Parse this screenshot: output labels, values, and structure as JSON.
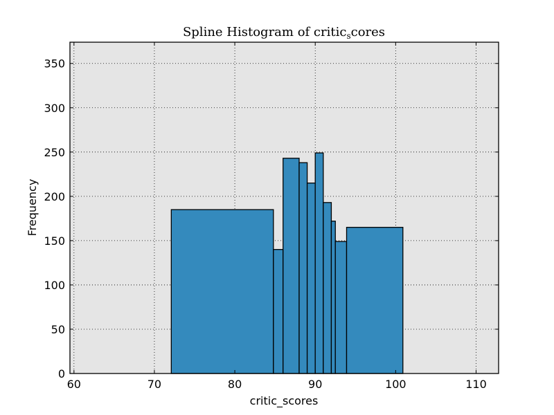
{
  "chart_data": {
    "type": "bar",
    "title": "Spline Histogram of critic_scores",
    "title_main": "Spline Histogram of critic",
    "title_sub": "s",
    "title_tail": "cores",
    "xlabel": "critic_scores",
    "ylabel": "Frequency",
    "xlim": [
      59.5,
      112.8
    ],
    "ylim": [
      0,
      374
    ],
    "xticks": [
      60,
      70,
      80,
      90,
      100,
      110
    ],
    "yticks": [
      0,
      50,
      100,
      150,
      200,
      250,
      300,
      350
    ],
    "grid": true,
    "bars": [
      {
        "x0": 72.1,
        "x1": 84.8,
        "value": 185
      },
      {
        "x0": 84.8,
        "x1": 86.0,
        "value": 140
      },
      {
        "x0": 86.0,
        "x1": 88.0,
        "value": 243
      },
      {
        "x0": 88.0,
        "x1": 89.0,
        "value": 238
      },
      {
        "x0": 89.0,
        "x1": 90.0,
        "value": 215
      },
      {
        "x0": 90.0,
        "x1": 91.0,
        "value": 249
      },
      {
        "x0": 91.0,
        "x1": 92.0,
        "value": 193
      },
      {
        "x0": 92.0,
        "x1": 92.5,
        "value": 172
      },
      {
        "x0": 92.5,
        "x1": 93.9,
        "value": 149
      },
      {
        "x0": 93.9,
        "x1": 100.9,
        "value": 165
      }
    ],
    "bar_color": "#348abd",
    "background": "#e5e5e5"
  }
}
